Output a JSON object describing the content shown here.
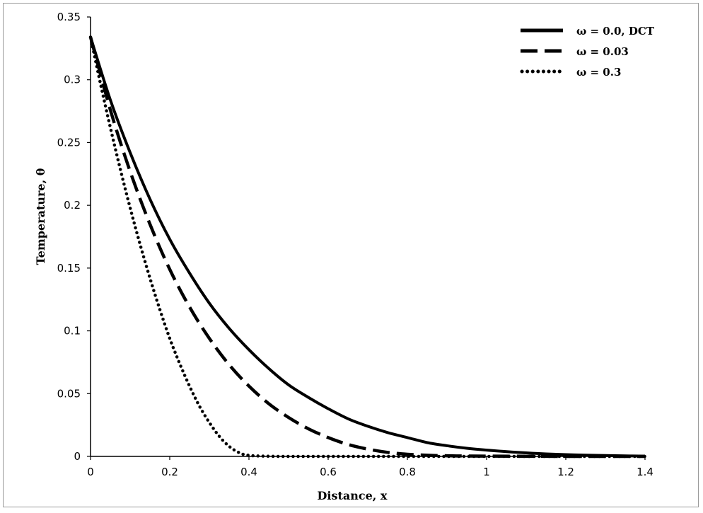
{
  "chart_data": {
    "type": "line",
    "xlabel": "Distance, x",
    "ylabel": "Temperature, θ",
    "xlim": [
      0,
      1.4
    ],
    "ylim": [
      0,
      0.35
    ],
    "xticks": [
      "0",
      "0.2",
      "0.4",
      "0.6",
      "0.8",
      "1",
      "1.2",
      "1.4"
    ],
    "yticks": [
      "0",
      "0.05",
      "0.1",
      "0.15",
      "0.2",
      "0.25",
      "0.3",
      "0.35"
    ],
    "grid": false,
    "legend": "top-right",
    "series": [
      {
        "name": "ω = 0.0,  DCT",
        "style": "solid",
        "x": [
          0,
          0.05,
          0.1,
          0.15,
          0.2,
          0.25,
          0.3,
          0.35,
          0.4,
          0.45,
          0.5,
          0.55,
          0.6,
          0.65,
          0.7,
          0.75,
          0.8,
          0.85,
          0.9,
          0.95,
          1.0,
          1.05,
          1.1,
          1.15,
          1.2,
          1.25,
          1.3,
          1.35,
          1.4
        ],
        "y": [
          0.334,
          0.284,
          0.242,
          0.205,
          0.173,
          0.146,
          0.122,
          0.102,
          0.085,
          0.07,
          0.057,
          0.047,
          0.038,
          0.03,
          0.024,
          0.019,
          0.015,
          0.011,
          0.0085,
          0.0065,
          0.005,
          0.0038,
          0.0028,
          0.002,
          0.0014,
          0.001,
          0.0007,
          0.0004,
          0.0002
        ]
      },
      {
        "name": "ω = 0.03",
        "style": "dash",
        "x": [
          0,
          0.05,
          0.1,
          0.15,
          0.2,
          0.25,
          0.3,
          0.35,
          0.4,
          0.45,
          0.5,
          0.55,
          0.6,
          0.65,
          0.7,
          0.75,
          0.8,
          0.85,
          0.9,
          0.95,
          1.0,
          1.1,
          1.2,
          1.3,
          1.4
        ],
        "y": [
          0.334,
          0.276,
          0.227,
          0.185,
          0.149,
          0.119,
          0.094,
          0.073,
          0.056,
          0.042,
          0.031,
          0.022,
          0.015,
          0.0095,
          0.0058,
          0.0032,
          0.0017,
          0.0009,
          0.0005,
          0.0003,
          0.0002,
          0.0001,
          0,
          0,
          0
        ]
      },
      {
        "name": "ω = 0.3",
        "style": "dot",
        "x": [
          0,
          0.025,
          0.05,
          0.075,
          0.1,
          0.125,
          0.15,
          0.175,
          0.2,
          0.225,
          0.25,
          0.275,
          0.3,
          0.325,
          0.35,
          0.375,
          0.4,
          0.45,
          0.5,
          0.6,
          0.7,
          0.8,
          0.9,
          1.0,
          1.1,
          1.2,
          1.3,
          1.4
        ],
        "y": [
          0.334,
          0.297,
          0.262,
          0.229,
          0.198,
          0.169,
          0.142,
          0.117,
          0.094,
          0.074,
          0.056,
          0.04,
          0.027,
          0.016,
          0.008,
          0.003,
          0.0008,
          0.0001,
          0,
          0,
          0,
          0,
          0,
          0,
          0,
          0,
          0,
          0
        ]
      }
    ]
  }
}
